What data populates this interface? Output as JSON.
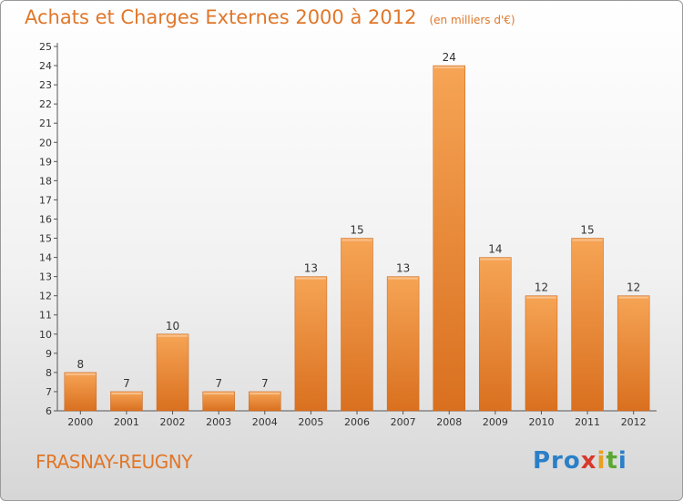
{
  "chart_data": {
    "type": "bar",
    "title": "Achats et Charges Externes 2000 à 2012",
    "subtitle": "(en milliers d'€)",
    "categories": [
      "2000",
      "2001",
      "2002",
      "2003",
      "2004",
      "2005",
      "2006",
      "2007",
      "2008",
      "2009",
      "2010",
      "2011",
      "2012"
    ],
    "values": [
      8,
      7,
      10,
      7,
      7,
      13,
      15,
      13,
      24,
      14,
      12,
      15,
      12
    ],
    "ylim": [
      6,
      25
    ],
    "yticks": [
      6,
      7,
      8,
      9,
      10,
      11,
      12,
      13,
      14,
      15,
      16,
      17,
      18,
      19,
      20,
      21,
      22,
      23,
      24,
      25
    ],
    "grid": false,
    "bar_color": "#f0913a"
  },
  "footer": {
    "commune": "FRASNAY-REUGNY",
    "logo": [
      "Pro",
      "x",
      "i",
      "t",
      "i"
    ]
  }
}
